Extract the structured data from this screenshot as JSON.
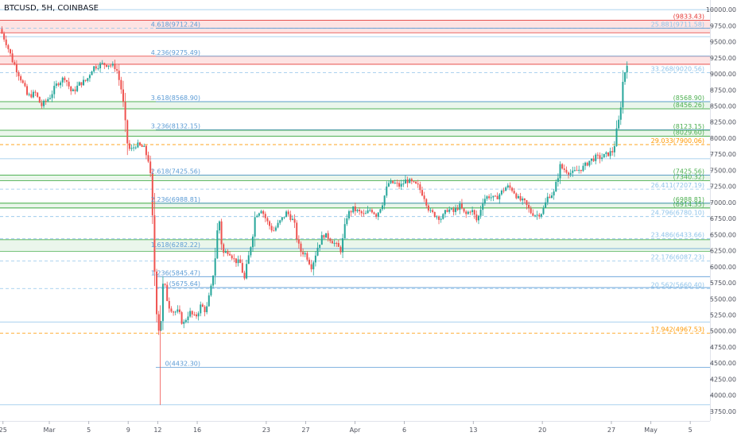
{
  "header": {
    "title": "BTCUSD, 5H, COINBASE"
  },
  "colors": {
    "up": "#26a69a",
    "down": "#ef5350",
    "blue": "#5b9bd5",
    "lightblue": "#90c4ea",
    "green": "#4caf50",
    "orange": "#ff9800",
    "red": "#e53935",
    "greenfill": "#e8f5e9",
    "redfill": "#fde0e0"
  },
  "chart_data": {
    "type": "candlestick",
    "symbol": "BTCUSD",
    "interval": "5H",
    "exchange": "COINBASE",
    "ylim": [
      3600,
      10150
    ],
    "y_ticks": [
      "10000.00",
      "9750.00",
      "9500.00",
      "9250.00",
      "9000.00",
      "8750.00",
      "8500.00",
      "8250.00",
      "8000.00",
      "7750.00",
      "7500.00",
      "7250.00",
      "7000.00",
      "6750.00",
      "6500.00",
      "6250.00",
      "6000.00",
      "5750.00",
      "5500.00",
      "5250.00",
      "5000.00",
      "4750.00",
      "4500.00",
      "4250.00",
      "4000.00",
      "3750.00"
    ],
    "x_ticks": [
      {
        "label": "25",
        "x": -4.7
      },
      {
        "label": "Mar",
        "x": 0
      },
      {
        "label": "5",
        "x": 4
      },
      {
        "label": "9",
        "x": 8
      },
      {
        "label": "12",
        "x": 11
      },
      {
        "label": "16",
        "x": 15
      },
      {
        "label": "23",
        "x": 22
      },
      {
        "label": "27",
        "x": 26
      },
      {
        "label": "Apr",
        "x": 31
      },
      {
        "label": "6",
        "x": 36
      },
      {
        "label": "13",
        "x": 43
      },
      {
        "label": "20",
        "x": 50
      },
      {
        "label": "27",
        "x": 57
      },
      {
        "label": "May",
        "x": 61
      },
      {
        "label": "5",
        "x": 65
      }
    ],
    "xlim": [
      -5,
      67
    ],
    "fib_levels_left": [
      {
        "label": "4.618(9712.24)",
        "value": 9712.24
      },
      {
        "label": "4.236(9275.49)",
        "value": 9275.49
      },
      {
        "label": "3.618(8568.90)",
        "value": 8568.9
      },
      {
        "label": "3.236(8132.15)",
        "value": 8132.15
      },
      {
        "label": "2.618(7425.56)",
        "value": 7425.56
      },
      {
        "label": "2.236(6988.81)",
        "value": 6988.81
      },
      {
        "label": "1.618(6282.22)",
        "value": 6282.22
      },
      {
        "label": "1.236(5845.47)",
        "value": 5845.47
      },
      {
        "label": "(5675.64)",
        "value": 5675.64
      },
      {
        "label": "0(4432.30)",
        "value": 4432.3
      }
    ],
    "levels_right": [
      {
        "label": "(9833.43)",
        "value": 9833.43,
        "color": "red"
      },
      {
        "label": "25.881(9711.58)",
        "value": 9711.58,
        "color": "lightblue"
      },
      {
        "label": "33.268(9020.56)",
        "value": 9020.56,
        "color": "lightblue"
      },
      {
        "label": "(8568.90)",
        "value": 8568.9,
        "color": "green"
      },
      {
        "label": "(8456.26)",
        "value": 8456.26,
        "color": "green"
      },
      {
        "label": "(8123.15)",
        "value": 8123.15,
        "color": "green"
      },
      {
        "label": "(8029.60)",
        "value": 8029.6,
        "color": "green"
      },
      {
        "label": "29.033(7900.06)",
        "value": 7900.06,
        "color": "orange"
      },
      {
        "label": "(7425.56)",
        "value": 7425.56,
        "color": "green"
      },
      {
        "label": "(7340.32)",
        "value": 7340.32,
        "color": "green"
      },
      {
        "label": "26.411(7207.19)",
        "value": 7207.19,
        "color": "lightblue"
      },
      {
        "label": "(6988.81)",
        "value": 6988.81,
        "color": "green"
      },
      {
        "label": "(6914.35)",
        "value": 6914.35,
        "color": "green"
      },
      {
        "label": "24.796(6780.10)",
        "value": 6780.1,
        "color": "lightblue"
      },
      {
        "label": "23.486(6433.66)",
        "value": 6433.66,
        "color": "lightblue"
      },
      {
        "label": "22.176(6087.23)",
        "value": 6087.23,
        "color": "lightblue"
      },
      {
        "label": "20.562(5660.40)",
        "value": 5660.4,
        "color": "lightblue"
      },
      {
        "label": "17.942(4967.53)",
        "value": 4967.53,
        "color": "orange"
      }
    ],
    "zones": [
      {
        "from": 9640,
        "to": 9833.43,
        "color": "red"
      },
      {
        "from": 9150,
        "to": 9275.49,
        "color": "red"
      },
      {
        "from": 8456.26,
        "to": 8568.9,
        "color": "green"
      },
      {
        "from": 8029.6,
        "to": 8123.15,
        "color": "green"
      },
      {
        "from": 7340.32,
        "to": 7425.56,
        "color": "green"
      },
      {
        "from": 6914.35,
        "to": 6988.81,
        "color": "green"
      },
      {
        "from": 6240,
        "to": 6420,
        "color": "green"
      }
    ],
    "extra_horizontal_lines": [
      {
        "value": 10000,
        "color": "lightblue"
      },
      {
        "value": 9580,
        "color": "lightblue"
      },
      {
        "value": 7680,
        "color": "lightblue"
      },
      {
        "value": 5140,
        "color": "lightblue"
      },
      {
        "value": 3850,
        "color": "lightblue"
      }
    ],
    "price_path": [
      [
        -4.8,
        9700
      ],
      [
        -4.2,
        9500
      ],
      [
        -3.5,
        9200
      ],
      [
        -2.6,
        8900
      ],
      [
        -2.0,
        8650
      ],
      [
        -1.2,
        8700
      ],
      [
        -0.6,
        8500
      ],
      [
        0.3,
        8650
      ],
      [
        1.0,
        8850
      ],
      [
        1.8,
        8950
      ],
      [
        2.5,
        8700
      ],
      [
        3.3,
        8850
      ],
      [
        4.0,
        8900
      ],
      [
        4.6,
        9100
      ],
      [
        5.5,
        9150
      ],
      [
        6.2,
        9150
      ],
      [
        7.0,
        9100
      ],
      [
        7.6,
        8700
      ],
      [
        8.0,
        8000
      ],
      [
        8.4,
        7800
      ],
      [
        9.0,
        7900
      ],
      [
        9.8,
        7850
      ],
      [
        10.4,
        7600
      ],
      [
        10.8,
        6200
      ],
      [
        11.1,
        5400
      ],
      [
        11.4,
        4900
      ],
      [
        11.8,
        5800
      ],
      [
        12.3,
        5400
      ],
      [
        12.8,
        5300
      ],
      [
        13.3,
        5300
      ],
      [
        13.8,
        5100
      ],
      [
        14.4,
        5300
      ],
      [
        15.0,
        5200
      ],
      [
        15.6,
        5400
      ],
      [
        16.1,
        5300
      ],
      [
        16.6,
        5650
      ],
      [
        17.0,
        6100
      ],
      [
        17.4,
        6800
      ],
      [
        17.8,
        6200
      ],
      [
        18.4,
        6250
      ],
      [
        19.0,
        6100
      ],
      [
        19.6,
        6050
      ],
      [
        20.0,
        5800
      ],
      [
        20.6,
        6300
      ],
      [
        21.1,
        6800
      ],
      [
        21.7,
        6900
      ],
      [
        22.3,
        6700
      ],
      [
        22.9,
        6550
      ],
      [
        23.6,
        6700
      ],
      [
        24.3,
        6850
      ],
      [
        25.0,
        6700
      ],
      [
        25.6,
        6250
      ],
      [
        26.2,
        6200
      ],
      [
        26.8,
        6000
      ],
      [
        27.4,
        6300
      ],
      [
        28.0,
        6500
      ],
      [
        28.6,
        6450
      ],
      [
        29.2,
        6350
      ],
      [
        29.8,
        6250
      ],
      [
        30.4,
        6800
      ],
      [
        31.0,
        6900
      ],
      [
        31.6,
        6850
      ],
      [
        32.2,
        6800
      ],
      [
        32.8,
        6900
      ],
      [
        33.4,
        6800
      ],
      [
        34.0,
        7000
      ],
      [
        34.6,
        7300
      ],
      [
        35.2,
        7300
      ],
      [
        35.8,
        7250
      ],
      [
        36.4,
        7350
      ],
      [
        37.0,
        7300
      ],
      [
        37.6,
        7250
      ],
      [
        38.2,
        7100
      ],
      [
        38.8,
        6850
      ],
      [
        39.4,
        6800
      ],
      [
        40.0,
        6750
      ],
      [
        40.6,
        6900
      ],
      [
        41.2,
        6850
      ],
      [
        41.8,
        6950
      ],
      [
        42.4,
        6800
      ],
      [
        43.0,
        6900
      ],
      [
        43.6,
        6700
      ],
      [
        44.2,
        7050
      ],
      [
        44.8,
        7100
      ],
      [
        45.4,
        7050
      ],
      [
        46.0,
        7150
      ],
      [
        46.6,
        7250
      ],
      [
        47.2,
        7200
      ],
      [
        47.8,
        7050
      ],
      [
        48.4,
        7000
      ],
      [
        49.0,
        6850
      ],
      [
        49.6,
        6800
      ],
      [
        50.2,
        6850
      ],
      [
        50.8,
        7100
      ],
      [
        51.4,
        7150
      ],
      [
        52.0,
        7550
      ],
      [
        52.6,
        7500
      ],
      [
        53.2,
        7450
      ],
      [
        53.8,
        7500
      ],
      [
        54.4,
        7550
      ],
      [
        55.0,
        7650
      ],
      [
        55.6,
        7700
      ],
      [
        56.2,
        7700
      ],
      [
        56.8,
        7750
      ],
      [
        57.4,
        7800
      ],
      [
        58.0,
        8300
      ],
      [
        58.4,
        8900
      ],
      [
        58.8,
        9200
      ]
    ]
  }
}
